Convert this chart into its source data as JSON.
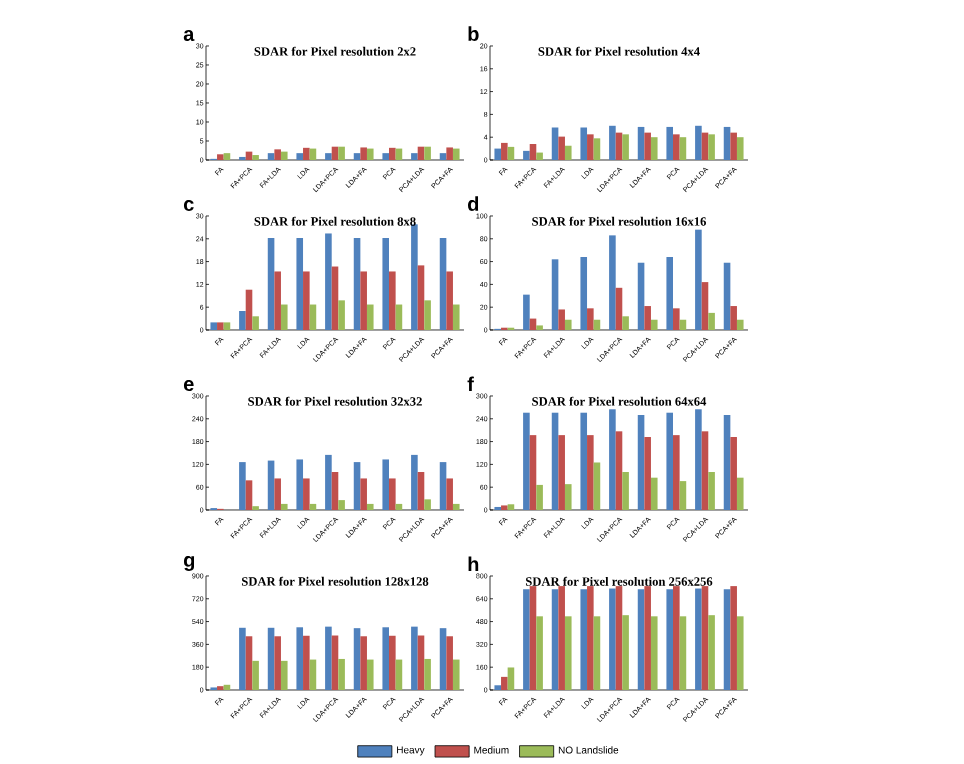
{
  "chart_data": [
    {
      "type": "bar",
      "title": "SDAR for Pixel resolution 2x2",
      "annotations": [
        "a"
      ],
      "categories": [
        "FA",
        "FA+PCA",
        "FA+LDA",
        "LDA",
        "LDA+PCA",
        "LDA+FA",
        "PCA",
        "PCA+LDA",
        "PCA+FA"
      ],
      "ylim": [
        0,
        30
      ],
      "yticks": [
        0,
        5,
        10,
        15,
        20,
        25,
        30
      ],
      "series": [
        {
          "color": "#4f81bd",
          "values": [
            0.3,
            0.8,
            1.8,
            1.8,
            1.8,
            1.8,
            1.8,
            1.8,
            1.8
          ]
        },
        {
          "color": "#c0504d",
          "values": [
            1.5,
            2.2,
            2.8,
            3.2,
            3.5,
            3.3,
            3.2,
            3.5,
            3.3
          ]
        },
        {
          "color": "#9bbb59",
          "values": [
            1.8,
            1.3,
            2.2,
            3.0,
            3.5,
            3.0,
            3.0,
            3.5,
            3.0
          ]
        }
      ]
    },
    {
      "type": "bar",
      "title": "SDAR for Pixel resolution 4x4",
      "annotations": [
        "b"
      ],
      "categories": [
        "FA",
        "FA+PCA",
        "FA+LDA",
        "LDA",
        "LDA+PCA",
        "LDA+FA",
        "PCA",
        "PCA+LDA",
        "PCA+FA"
      ],
      "ylim": [
        0,
        20
      ],
      "yticks": [
        0,
        4,
        8,
        12,
        16,
        20
      ],
      "series": [
        {
          "color": "#4f81bd",
          "values": [
            2.0,
            1.6,
            5.7,
            5.7,
            6.0,
            5.8,
            5.8,
            6.0,
            5.8
          ]
        },
        {
          "color": "#c0504d",
          "values": [
            3.0,
            2.8,
            4.1,
            4.5,
            4.8,
            4.8,
            4.5,
            4.8,
            4.8
          ]
        },
        {
          "color": "#9bbb59",
          "values": [
            2.3,
            1.3,
            2.5,
            3.8,
            4.5,
            4.0,
            4.0,
            4.5,
            4.0
          ]
        }
      ]
    },
    {
      "type": "bar",
      "title": "SDAR for Pixel resolution 8x8",
      "annotations": [
        "c"
      ],
      "categories": [
        "FA",
        "FA+PCA",
        "FA+LDA",
        "LDA",
        "LDA+PCA",
        "LDA+FA",
        "PCA",
        "PCA+LDA",
        "PCA+FA"
      ],
      "ylim": [
        0,
        30
      ],
      "yticks": [
        0,
        6,
        12,
        18,
        24,
        30
      ],
      "series": [
        {
          "color": "#4f81bd",
          "values": [
            2.0,
            5.0,
            24.2,
            24.2,
            25.4,
            24.2,
            24.2,
            27.8,
            24.2
          ]
        },
        {
          "color": "#c0504d",
          "values": [
            2.0,
            10.6,
            15.4,
            15.4,
            16.7,
            15.4,
            15.4,
            17.0,
            15.4
          ]
        },
        {
          "color": "#9bbb59",
          "values": [
            2.0,
            3.6,
            6.7,
            6.7,
            7.8,
            6.7,
            6.7,
            7.8,
            6.7
          ]
        }
      ]
    },
    {
      "type": "bar",
      "title": "SDAR for Pixel resolution 16x16",
      "annotations": [
        "d"
      ],
      "categories": [
        "FA",
        "FA+PCA",
        "FA+LDA",
        "LDA",
        "LDA+PCA",
        "LDA+FA",
        "PCA",
        "PCA+LDA",
        "PCA+FA"
      ],
      "ylim": [
        0,
        100
      ],
      "yticks": [
        0,
        20,
        40,
        60,
        80,
        100
      ],
      "series": [
        {
          "color": "#4f81bd",
          "values": [
            1,
            31,
            62,
            64,
            83,
            59,
            64,
            88,
            59
          ]
        },
        {
          "color": "#c0504d",
          "values": [
            2,
            10,
            18,
            19,
            37,
            21,
            19,
            42,
            21
          ]
        },
        {
          "color": "#9bbb59",
          "values": [
            2,
            4,
            9,
            9,
            12,
            9,
            9,
            15,
            9
          ]
        }
      ]
    },
    {
      "type": "bar",
      "title": "SDAR for Pixel resolution 32x32",
      "annotations": [
        "e"
      ],
      "categories": [
        "FA",
        "FA+PCA",
        "FA+LDA",
        "LDA",
        "LDA+PCA",
        "LDA+FA",
        "PCA",
        "PCA+LDA",
        "PCA+FA"
      ],
      "ylim": [
        0,
        300
      ],
      "yticks": [
        0,
        60,
        120,
        180,
        240,
        300
      ],
      "series": [
        {
          "color": "#4f81bd",
          "values": [
            5,
            126,
            130,
            133,
            145,
            126,
            133,
            145,
            126
          ]
        },
        {
          "color": "#c0504d",
          "values": [
            3,
            78,
            83,
            83,
            100,
            83,
            83,
            100,
            83
          ]
        },
        {
          "color": "#9bbb59",
          "values": [
            null,
            10,
            16,
            16,
            26,
            16,
            16,
            28,
            16
          ]
        }
      ]
    },
    {
      "type": "bar",
      "title": "SDAR for Pixel resolution 64x64",
      "annotations": [
        "f"
      ],
      "categories": [
        "FA",
        "FA+PCA",
        "FA+LDA",
        "LDA",
        "LDA+PCA",
        "LDA+FA",
        "PCA",
        "PCA+LDA",
        "PCA+FA"
      ],
      "ylim": [
        0,
        300
      ],
      "yticks": [
        0,
        60,
        120,
        180,
        240,
        300
      ],
      "series": [
        {
          "color": "#4f81bd",
          "values": [
            8,
            256,
            256,
            256,
            265,
            250,
            256,
            265,
            250
          ]
        },
        {
          "color": "#c0504d",
          "values": [
            12,
            197,
            197,
            197,
            207,
            192,
            197,
            207,
            192
          ]
        },
        {
          "color": "#9bbb59",
          "values": [
            15,
            66,
            68,
            125,
            100,
            85,
            76,
            100,
            85
          ]
        }
      ]
    },
    {
      "type": "bar",
      "title": "SDAR for Pixel resolution 128x128",
      "annotations": [
        "g"
      ],
      "categories": [
        "FA",
        "FA+PCA",
        "FA+LDA",
        "LDA",
        "LDA+PCA",
        "LDA+FA",
        "PCA",
        "PCA+LDA",
        "PCA+FA"
      ],
      "ylim": [
        0,
        900
      ],
      "yticks": [
        0,
        180,
        360,
        540,
        720,
        900
      ],
      "series": [
        {
          "color": "#4f81bd",
          "values": [
            20,
            491,
            491,
            495,
            500,
            488,
            495,
            500,
            488
          ]
        },
        {
          "color": "#c0504d",
          "values": [
            30,
            424,
            424,
            428,
            430,
            424,
            428,
            430,
            424
          ]
        },
        {
          "color": "#9bbb59",
          "values": [
            41,
            230,
            230,
            240,
            245,
            240,
            240,
            245,
            240
          ]
        }
      ]
    },
    {
      "type": "bar",
      "title": "SDAR for Pixel resolution 256x256",
      "annotations": [
        "h"
      ],
      "categories": [
        "FA",
        "FA+PCA",
        "FA+LDA",
        "LDA",
        "LDA+PCA",
        "LDA+FA",
        "PCA",
        "PCA+LDA",
        "PCA+FA"
      ],
      "ylim": [
        0,
        800
      ],
      "yticks": [
        0,
        160,
        320,
        480,
        640,
        800
      ],
      "legend": "bottom",
      "series": [
        {
          "name": "Heavy",
          "color": "#4f81bd",
          "values": [
            33,
            707,
            707,
            707,
            712,
            707,
            707,
            712,
            707
          ]
        },
        {
          "name": "Medium",
          "color": "#c0504d",
          "values": [
            92,
            729,
            729,
            729,
            729,
            729,
            729,
            729,
            729
          ]
        },
        {
          "name": "NO Landslide",
          "color": "#9bbb59",
          "values": [
            158,
            517,
            517,
            517,
            525,
            517,
            517,
            525,
            517
          ]
        }
      ]
    }
  ]
}
